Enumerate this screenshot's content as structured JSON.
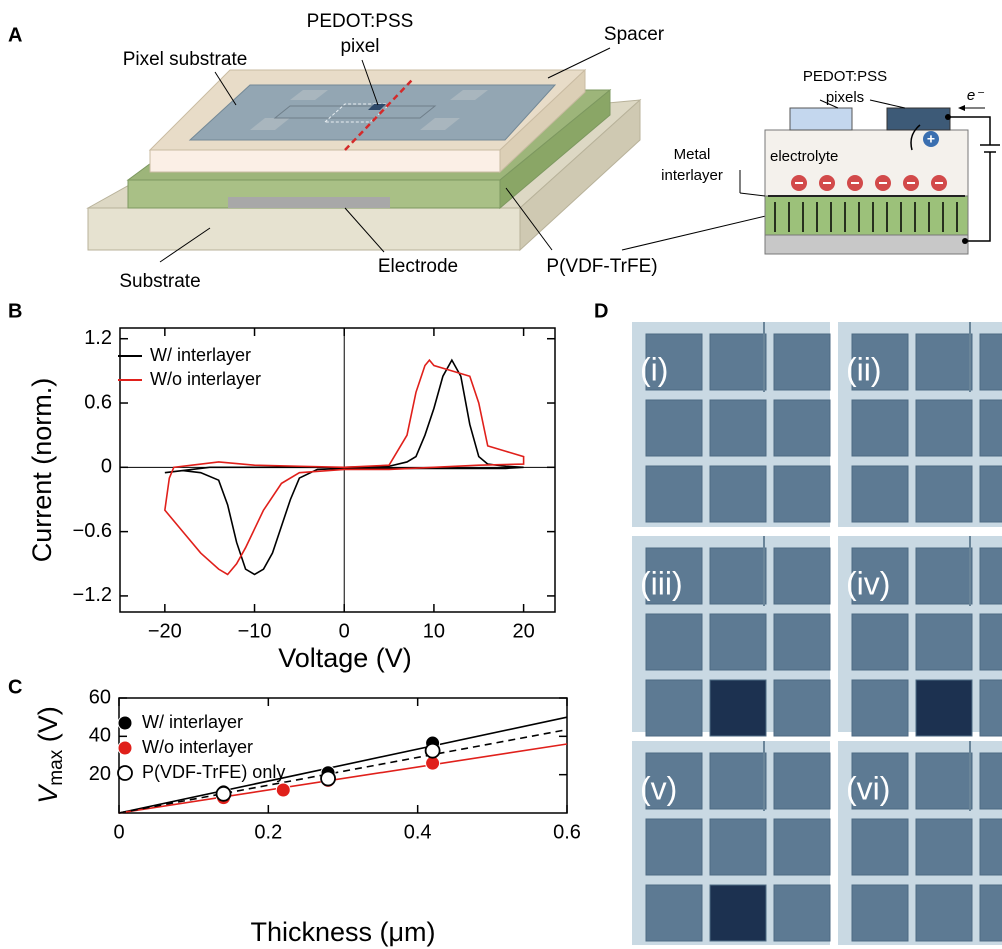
{
  "panel_labels": [
    "A",
    "B",
    "C",
    "D"
  ],
  "diagram": {
    "pixel_label": [
      "PEDOT:PSS",
      "pixel"
    ],
    "pixel_substrate": "Pixel substrate",
    "spacer": "Spacer",
    "substrate": "Substrate",
    "electrode": "Electrode",
    "ferroelectric": "P(VDF-TrFE)",
    "pixels_label": [
      "PEDOT:PSS",
      "pixels"
    ],
    "electron": "e⁻",
    "interlayer": [
      "Metal",
      "interlayer"
    ],
    "electrolyte": "electrolyte"
  },
  "chart_data": [
    {
      "type": "line",
      "xlabel": "Voltage (V)",
      "ylabel": "Current (norm.)",
      "xlim": [
        -25,
        23.5
      ],
      "xticks": [
        {
          "value": -20,
          "label": "−20"
        },
        {
          "value": -10,
          "label": "−10"
        },
        0,
        10,
        20
      ],
      "ylim": [
        -1.35,
        1.3
      ],
      "yticks": [
        {
          "value": -1.2,
          "label": "−1.2"
        },
        {
          "value": -0.6,
          "label": "−0.6"
        },
        0,
        0.6,
        1.2
      ],
      "zero_lines": true,
      "series": [
        {
          "name": "W/ interlayer",
          "color": "#000000",
          "x": [
            -20,
            -15,
            -10,
            -5,
            0,
            5,
            7,
            8,
            9,
            10,
            11,
            12,
            13,
            14,
            15,
            16,
            18,
            20,
            18,
            15,
            10,
            5,
            0,
            -3,
            -5,
            -6,
            -7,
            -8,
            -9,
            -10,
            -11,
            -12,
            -13,
            -14,
            -16,
            -18,
            -20
          ],
          "values": [
            -0.05,
            0,
            0,
            0,
            0,
            0.01,
            0.05,
            0.1,
            0.3,
            0.55,
            0.85,
            1.0,
            0.85,
            0.4,
            0.1,
            0.03,
            0.01,
            0,
            -0.01,
            -0.01,
            -0.01,
            -0.01,
            -0.01,
            -0.02,
            -0.1,
            -0.3,
            -0.55,
            -0.8,
            -0.95,
            -1.0,
            -0.95,
            -0.7,
            -0.35,
            -0.12,
            -0.05,
            -0.03,
            -0.05
          ]
        },
        {
          "name": "W/o interlayer",
          "color": "#e0201b",
          "x": [
            0,
            5,
            7,
            8,
            9,
            9.5,
            10,
            12,
            14,
            15,
            16,
            18,
            20,
            20,
            15,
            10,
            5,
            0,
            -5,
            -7,
            -9,
            -11,
            -12,
            -13,
            -14,
            -16,
            -18,
            -20,
            -19.5,
            -19,
            -17,
            -14,
            -10,
            -5,
            0
          ],
          "values": [
            0,
            0.02,
            0.3,
            0.7,
            0.95,
            1.0,
            0.95,
            0.9,
            0.85,
            0.6,
            0.2,
            0.15,
            0.1,
            0.03,
            0.02,
            0,
            -0.02,
            -0.02,
            -0.05,
            -0.15,
            -0.4,
            -0.75,
            -0.9,
            -1.0,
            -0.95,
            -0.8,
            -0.6,
            -0.4,
            -0.1,
            0,
            0.02,
            0.05,
            0.02,
            0.01,
            0
          ]
        }
      ]
    },
    {
      "type": "scatter",
      "xlabel": "Thickness (μm)",
      "ylabel": {
        "main": "V",
        "sub": "max",
        "unit": " (V)"
      },
      "xlim": [
        0,
        0.6
      ],
      "xticks": [
        0,
        0.2,
        0.4,
        0.6
      ],
      "ylim": [
        0,
        60
      ],
      "yticks": [
        20,
        40,
        60
      ],
      "series": [
        {
          "name": "W/ interlayer",
          "color": "#000000",
          "marker": "filled",
          "x": [
            0.14,
            0.28,
            0.42
          ],
          "values": [
            11,
            21,
            36.5
          ],
          "fit": {
            "x": [
              0,
              0.6
            ],
            "values": [
              0,
              50
            ],
            "style": "solid"
          }
        },
        {
          "name": "W/o interlayer",
          "color": "#e0201b",
          "marker": "filled",
          "x": [
            0.14,
            0.22,
            0.28,
            0.42
          ],
          "values": [
            8,
            12,
            17,
            26
          ],
          "fit": {
            "x": [
              0,
              0.6
            ],
            "values": [
              0,
              36
            ],
            "style": "solid"
          }
        },
        {
          "name": "P(VDF-TrFE) only",
          "color": "#000000",
          "marker": "open",
          "x": [
            0.14,
            0.28,
            0.42
          ],
          "values": [
            10,
            18,
            32.5
          ],
          "fit": {
            "x": [
              0,
              0.6
            ],
            "values": [
              0,
              43.5
            ],
            "style": "dashed"
          }
        }
      ]
    }
  ],
  "images": {
    "labels": [
      "(i)",
      "(ii)",
      "(iii)",
      "(iv)",
      "(v)",
      "(vi)"
    ]
  }
}
